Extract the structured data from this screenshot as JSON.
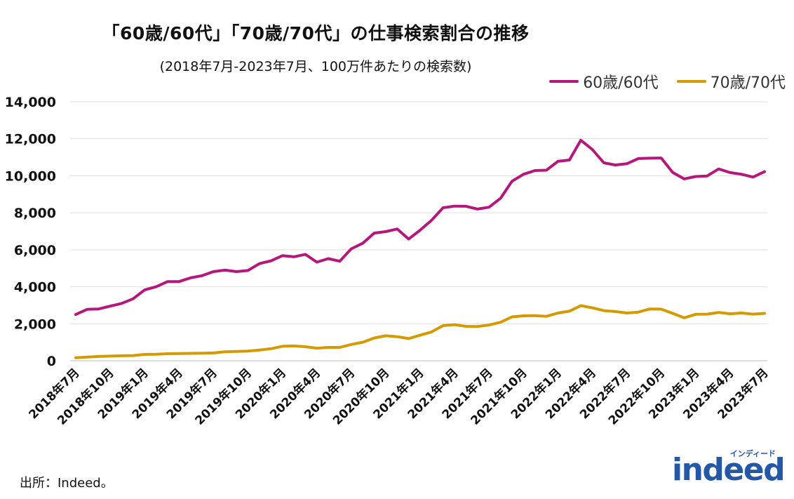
{
  "title": "「60歳/60代」「70歳/70代」の仕事検索割合の推移",
  "subtitle": "(2018年7月-2023年7月、100万件あたりの検索数)",
  "source": "出所：Indeed。",
  "logo": {
    "text": "indeed",
    "kana": "インディード",
    "color": "#2557a7"
  },
  "chart_data": {
    "type": "line",
    "title": "「60歳/60代」「70歳/70代」の仕事検索割合の推移",
    "subtitle": "(2018年7月-2023年7月、100万件あたりの検索数)",
    "ylim": [
      0,
      14000
    ],
    "yticks": [
      "0",
      "2,000",
      "4,000",
      "6,000",
      "8,000",
      "10,000",
      "12,000",
      "14,000"
    ],
    "ytick_values": [
      0,
      2000,
      4000,
      6000,
      8000,
      10000,
      12000,
      14000
    ],
    "xtick_labels": [
      "2018年7月",
      "2018年10月",
      "2019年1月",
      "2019年4月",
      "2019年7月",
      "2019年10月",
      "2020年1月",
      "2020年4月",
      "2020年7月",
      "2020年10月",
      "2021年1月",
      "2021年4月",
      "2021年7月",
      "2021年10月",
      "2022年1月",
      "2022年4月",
      "2022年7月",
      "2022年10月",
      "2023年1月",
      "2023年4月",
      "2023年7月"
    ],
    "grid": true,
    "legend_position": "top-right",
    "series": [
      {
        "name": "60歳/60代",
        "color": "#b5177a",
        "values": [
          2500,
          2780,
          2800,
          2950,
          3100,
          3350,
          3830,
          4000,
          4280,
          4280,
          4480,
          4600,
          4820,
          4900,
          4820,
          4880,
          5250,
          5400,
          5680,
          5620,
          5750,
          5330,
          5520,
          5380,
          6050,
          6350,
          6900,
          6980,
          7120,
          6580,
          7060,
          7600,
          8270,
          8360,
          8350,
          8200,
          8300,
          8780,
          9700,
          10080,
          10280,
          10300,
          10780,
          10850,
          11920,
          11420,
          10700,
          10580,
          10650,
          10930,
          10950,
          10960,
          10180,
          9830,
          9960,
          9990,
          10370,
          10170,
          10080,
          9930,
          10220
        ]
      },
      {
        "name": "70歳/70代",
        "color": "#d49a00",
        "values": [
          160,
          200,
          230,
          250,
          270,
          280,
          340,
          350,
          380,
          390,
          400,
          410,
          420,
          480,
          500,
          520,
          580,
          650,
          780,
          800,
          760,
          680,
          720,
          720,
          880,
          1000,
          1230,
          1350,
          1300,
          1200,
          1380,
          1560,
          1900,
          1950,
          1860,
          1850,
          1930,
          2080,
          2370,
          2430,
          2440,
          2400,
          2580,
          2680,
          2980,
          2860,
          2710,
          2660,
          2580,
          2630,
          2800,
          2790,
          2560,
          2320,
          2510,
          2520,
          2610,
          2540,
          2580,
          2520,
          2560
        ]
      }
    ]
  }
}
